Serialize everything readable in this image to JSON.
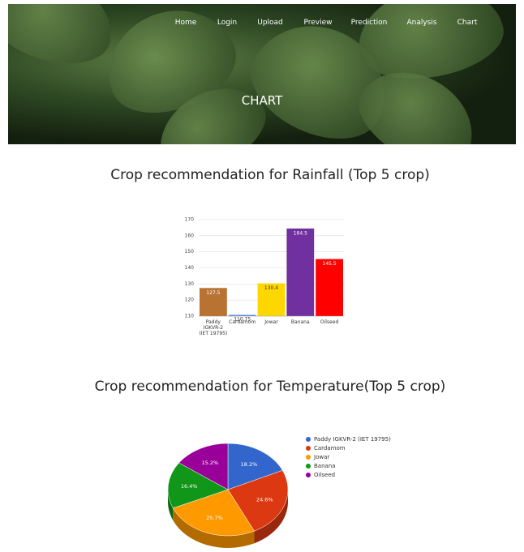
{
  "nav": [
    "Home",
    "Login",
    "Upload",
    "Preview",
    "Prediction",
    "Analysis",
    "Chart"
  ],
  "hero": {
    "title": "CHART"
  },
  "chart_data": [
    {
      "type": "bar",
      "title": "Crop recommendation for Rainfall (Top 5 crop)",
      "categories": [
        "Paddy IGKVR-2 (IET 19795)",
        "Cardamom",
        "Jowar",
        "Banana",
        "Oilseed"
      ],
      "values": [
        127.5,
        110.75,
        130.4,
        164.5,
        145.5
      ],
      "colors": [
        "#b87333",
        "#4a86e8",
        "#ffd700",
        "#7030a0",
        "#ff0000"
      ],
      "ylim": [
        110,
        170
      ],
      "yticks": [
        110,
        120,
        130,
        140,
        150,
        160,
        170
      ],
      "grid": true
    },
    {
      "type": "pie",
      "title": "Crop recommendation for Temperature(Top 5 crop)",
      "categories": [
        "Paddy IGKVR-2 (IET 19795)",
        "Cardamom",
        "Jowar",
        "Banana",
        "Oilseed"
      ],
      "values": [
        18.2,
        24.6,
        25.7,
        16.4,
        15.2
      ],
      "value_labels": [
        "18.2%",
        "24.6%",
        "25.7%",
        "16.4%",
        "15.2%"
      ],
      "colors": [
        "#3366cc",
        "#dc3912",
        "#ff9900",
        "#109618",
        "#990099"
      ],
      "legend": "right"
    }
  ]
}
